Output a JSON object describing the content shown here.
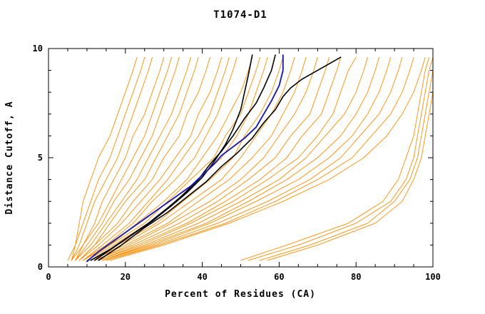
{
  "chart_data": {
    "type": "line",
    "title": "T1074-D1",
    "xlabel": "Percent of Residues (CA)",
    "ylabel": "Distance Cutoff, A",
    "xlim": [
      0,
      100
    ],
    "ylim": [
      0,
      10
    ],
    "xticks": [
      0,
      20,
      40,
      60,
      80,
      100
    ],
    "yticks": [
      0,
      5,
      10
    ],
    "x_minor_step": 5,
    "y_minor_step": 1,
    "grid": false,
    "legend": "none",
    "colors": {
      "ensemble": "#ff8c00",
      "highlight_black": "#000000",
      "highlight_blue": "#1c1cb0",
      "axis": "#000000",
      "background": "#ffffff"
    },
    "y_grid": [
      0.3,
      1,
      2,
      3,
      4,
      5,
      6,
      7,
      8,
      9,
      9.6
    ],
    "orange_curves_x": [
      [
        5,
        7,
        8,
        9,
        11,
        13,
        16,
        18,
        20,
        22,
        23
      ],
      [
        6,
        7,
        9,
        11,
        13,
        16,
        18,
        20,
        22,
        24,
        25
      ],
      [
        6,
        8,
        10,
        12,
        15,
        18,
        20,
        22,
        24,
        26,
        27
      ],
      [
        6,
        9,
        12,
        14,
        17,
        20,
        22,
        25,
        27,
        29,
        30
      ],
      [
        7,
        9,
        13,
        16,
        19,
        22,
        25,
        27,
        29,
        31,
        32
      ],
      [
        7,
        10,
        14,
        17,
        21,
        24,
        27,
        29,
        31,
        33,
        34
      ],
      [
        7,
        11,
        15,
        19,
        23,
        26,
        29,
        32,
        34,
        36,
        37
      ],
      [
        8,
        12,
        16,
        20,
        25,
        28,
        31,
        34,
        36,
        38,
        39
      ],
      [
        8,
        12,
        18,
        22,
        27,
        30,
        34,
        36,
        39,
        41,
        42
      ],
      [
        8,
        13,
        19,
        24,
        29,
        33,
        37,
        39,
        42,
        44,
        45
      ],
      [
        9,
        14,
        21,
        26,
        31,
        35,
        39,
        42,
        44,
        46,
        47
      ],
      [
        9,
        15,
        22,
        27,
        33,
        38,
        41,
        44,
        46,
        48,
        49
      ],
      [
        9,
        16,
        23,
        30,
        36,
        40,
        44,
        47,
        50,
        52,
        53
      ],
      [
        10,
        16,
        25,
        31,
        37,
        43,
        46,
        50,
        52,
        54,
        55
      ],
      [
        10,
        17,
        26,
        33,
        39,
        45,
        49,
        52,
        54,
        56,
        57
      ],
      [
        11,
        18,
        28,
        35,
        42,
        48,
        51,
        55,
        58,
        60,
        61
      ],
      [
        11,
        19,
        29,
        37,
        45,
        50,
        54,
        58,
        61,
        63,
        64
      ],
      [
        11,
        20,
        31,
        39,
        47,
        53,
        58,
        61,
        64,
        66,
        67
      ],
      [
        12,
        21,
        32,
        42,
        50,
        56,
        60,
        64,
        67,
        69,
        70
      ],
      [
        12,
        22,
        34,
        44,
        52,
        59,
        63,
        68,
        70,
        72,
        73
      ],
      [
        13,
        23,
        36,
        46,
        55,
        62,
        66,
        71,
        73,
        75,
        76
      ],
      [
        13,
        24,
        37,
        48,
        57,
        65,
        70,
        74,
        76,
        78,
        80
      ],
      [
        14,
        25,
        39,
        50,
        60,
        67,
        72,
        77,
        80,
        82,
        83
      ],
      [
        14,
        26,
        41,
        52,
        62,
        70,
        76,
        80,
        83,
        85,
        86
      ],
      [
        14,
        27,
        42,
        54,
        65,
        73,
        79,
        83,
        86,
        88,
        89
      ],
      [
        15,
        28,
        44,
        57,
        68,
        76,
        81,
        86,
        89,
        91,
        92
      ],
      [
        15,
        29,
        46,
        59,
        70,
        79,
        84,
        89,
        92,
        94,
        95
      ],
      [
        16,
        30,
        47,
        61,
        73,
        82,
        88,
        92,
        95,
        97,
        98
      ],
      [
        50,
        62,
        78,
        87,
        91,
        93,
        95,
        96,
        97,
        98,
        99
      ],
      [
        52,
        65,
        80,
        89,
        93,
        95,
        96,
        97,
        98,
        99,
        100
      ],
      [
        55,
        68,
        83,
        90,
        94,
        96,
        97,
        98,
        99,
        100,
        100
      ],
      [
        57,
        70,
        85,
        92,
        95,
        97,
        98,
        99,
        100,
        100,
        100
      ]
    ],
    "black_curves": [
      [
        [
          12,
          0.3
        ],
        [
          17,
          0.9
        ],
        [
          22,
          1.5
        ],
        [
          27,
          2.1
        ],
        [
          32,
          2.8
        ],
        [
          36,
          3.4
        ],
        [
          40,
          4.1
        ],
        [
          43,
          4.8
        ],
        [
          46,
          5.6
        ],
        [
          48,
          6.3
        ],
        [
          50,
          7.2
        ],
        [
          51,
          8.0
        ],
        [
          52,
          8.8
        ],
        [
          53,
          9.7
        ]
      ],
      [
        [
          13,
          0.3
        ],
        [
          19,
          1.0
        ],
        [
          25,
          1.8
        ],
        [
          31,
          2.5
        ],
        [
          36,
          3.2
        ],
        [
          41,
          3.9
        ],
        [
          45,
          4.6
        ],
        [
          49,
          5.2
        ],
        [
          53,
          5.9
        ],
        [
          56,
          6.6
        ],
        [
          59,
          7.2
        ],
        [
          61,
          7.8
        ],
        [
          63,
          8.2
        ],
        [
          66,
          8.6
        ],
        [
          70,
          9.0
        ],
        [
          73,
          9.3
        ],
        [
          76,
          9.6
        ]
      ],
      [
        [
          11,
          0.3
        ],
        [
          16,
          0.8
        ],
        [
          21,
          1.4
        ],
        [
          26,
          2.0
        ],
        [
          31,
          2.7
        ],
        [
          35,
          3.3
        ],
        [
          39,
          4.0
        ],
        [
          42,
          4.7
        ],
        [
          45,
          5.3
        ],
        [
          48,
          6.0
        ],
        [
          51,
          6.8
        ],
        [
          54,
          7.5
        ],
        [
          56,
          8.2
        ],
        [
          58,
          9.0
        ],
        [
          59,
          9.7
        ]
      ]
    ],
    "blue_curve": [
      [
        10,
        0.25
      ],
      [
        13,
        0.7
      ],
      [
        17,
        1.2
      ],
      [
        21,
        1.7
      ],
      [
        25,
        2.2
      ],
      [
        29,
        2.7
      ],
      [
        33,
        3.2
      ],
      [
        37,
        3.7
      ],
      [
        40,
        4.2
      ],
      [
        43,
        4.7
      ],
      [
        45,
        5.1
      ],
      [
        48,
        5.5
      ],
      [
        51,
        5.9
      ],
      [
        54,
        6.4
      ],
      [
        56,
        7.0
      ],
      [
        58,
        7.6
      ],
      [
        60,
        8.3
      ],
      [
        61,
        9.0
      ],
      [
        61,
        9.7
      ]
    ]
  }
}
